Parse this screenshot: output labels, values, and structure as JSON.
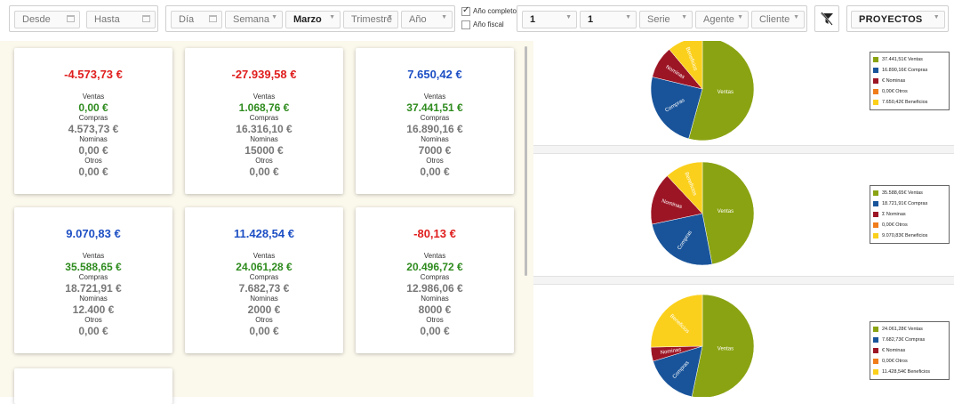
{
  "toolbar": {
    "desde": "Desde",
    "hasta": "Hasta",
    "dia": "Día",
    "semana": "Semana",
    "mes": "Marzo",
    "trimestre": "Trimestre",
    "anio": "Año",
    "anio_completo": "Año completo",
    "anio_fiscal": "Año fiscal",
    "sel1": "1",
    "sel2": "1",
    "serie": "Serie",
    "agente": "Agente",
    "cliente": "Cliente",
    "proyectos": "PROYECTOS"
  },
  "labels": {
    "ventas": "Ventas",
    "compras": "Compras",
    "nominas": "Nominas",
    "otros": "Otros"
  },
  "cards": [
    {
      "total": "-4.573,73 €",
      "sign": "neg",
      "ventas": "0,00 €",
      "compras": "4.573,73 €",
      "nominas": "0,00 €",
      "otros": "0,00 €"
    },
    {
      "total": "-27.939,58 €",
      "sign": "neg",
      "ventas": "1.068,76 €",
      "compras": "16.316,10 €",
      "nominas": "15000  €",
      "otros": "0,00 €"
    },
    {
      "total": "7.650,42 €",
      "sign": "pos",
      "ventas": "37.441,51 €",
      "compras": "16.890,16 €",
      "nominas": "7000  €",
      "otros": "0,00 €"
    },
    {
      "total": "9.070,83 €",
      "sign": "pos",
      "ventas": "35.588,65 €",
      "compras": "18.721,91 €",
      "nominas": "12.400 €",
      "otros": "0,00 €"
    },
    {
      "total": "11.428,54 €",
      "sign": "pos",
      "ventas": "24.061,28 €",
      "compras": "7.682,73 €",
      "nominas": "2000  €",
      "otros": "0,00 €"
    },
    {
      "total": "-80,13 €",
      "sign": "neg",
      "ventas": "20.496,72 €",
      "compras": "12.986,06 €",
      "nominas": "8000  €",
      "otros": "0,00 €"
    }
  ],
  "colors": {
    "ventas": "#8aa312",
    "compras": "#19549a",
    "nominas": "#9c1525",
    "otros": "#f07c1a",
    "beneficios": "#fbd01c"
  },
  "pie_labels": {
    "ventas": "Ventas",
    "compras": "Compras",
    "nominas": "Nominas",
    "beneficios": "Beneficios"
  },
  "chart_data": [
    {
      "type": "pie",
      "categories": [
        "Ventas",
        "Compras",
        "Nominas",
        "Otros",
        "Beneficios"
      ],
      "values": [
        37441.51,
        16890.16,
        7000,
        0,
        7650.42
      ],
      "legend": [
        "37.441,51€ Ventas",
        "16.890,16€ Compras",
        "€ Nominas",
        "0,00€ Otros",
        "7.650,42€ Beneficios"
      ]
    },
    {
      "type": "pie",
      "categories": [
        "Ventas",
        "Compras",
        "Nominas",
        "Otros",
        "Beneficios"
      ],
      "values": [
        35588.65,
        18721.91,
        12400,
        0,
        9070.83
      ],
      "legend": [
        "35.588,65€ Ventas",
        "18.721,91€ Compras",
        "Σ Nominas",
        "0,00€ Otros",
        "9.070,83€ Beneficios"
      ]
    },
    {
      "type": "pie",
      "categories": [
        "Ventas",
        "Compras",
        "Nominas",
        "Otros",
        "Beneficios"
      ],
      "values": [
        24061.28,
        7682.73,
        2000,
        0,
        11428.54
      ],
      "legend": [
        "24.061,28€ Ventas",
        "7.682,73€ Compras",
        "€ Nominas",
        "0,00€ Otros",
        "11.428,54€ Beneficios"
      ]
    }
  ]
}
